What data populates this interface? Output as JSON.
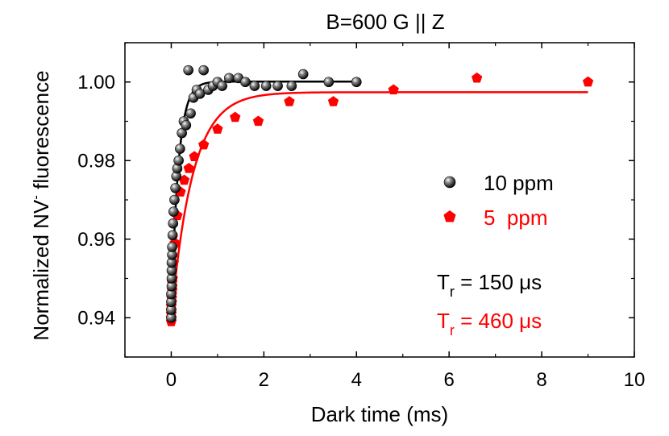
{
  "chart_data": {
    "type": "scatter",
    "title": "B=600 G || Z",
    "xlabel": "Dark time (ms)",
    "ylabel_main": "Normalized NV",
    "ylabel_sup": "-",
    "ylabel_tail": " fluorescence",
    "xlim": [
      -1,
      10
    ],
    "ylim": [
      0.93,
      1.01
    ],
    "xticks": [
      0,
      2,
      4,
      6,
      8,
      10
    ],
    "xtick_labels": [
      "0",
      "2",
      "4",
      "6",
      "8",
      "10"
    ],
    "yticks": [
      0.94,
      0.96,
      0.98,
      1.0
    ],
    "ytick_labels": [
      "0.94",
      "0.96",
      "0.98",
      "1.00"
    ],
    "grid": false,
    "legend_position": "right",
    "series": [
      {
        "name": "10 ppm",
        "color": "#000000",
        "marker": "sphere",
        "points": [
          [
            0.0,
            0.94
          ],
          [
            0.0,
            0.942
          ],
          [
            0.0,
            0.944
          ],
          [
            0.0,
            0.946
          ],
          [
            0.01,
            0.948
          ],
          [
            0.01,
            0.95
          ],
          [
            0.01,
            0.952
          ],
          [
            0.01,
            0.954
          ],
          [
            0.02,
            0.956
          ],
          [
            0.02,
            0.958
          ],
          [
            0.03,
            0.961
          ],
          [
            0.04,
            0.964
          ],
          [
            0.05,
            0.967
          ],
          [
            0.07,
            0.97
          ],
          [
            0.09,
            0.973
          ],
          [
            0.11,
            0.976
          ],
          [
            0.13,
            0.978
          ],
          [
            0.16,
            0.98
          ],
          [
            0.19,
            0.983
          ],
          [
            0.23,
            0.987
          ],
          [
            0.27,
            0.99
          ],
          [
            0.32,
            0.989
          ],
          [
            0.37,
            1.003
          ],
          [
            0.42,
            0.992
          ],
          [
            0.48,
            0.996
          ],
          [
            0.55,
            0.998
          ],
          [
            0.62,
            0.997
          ],
          [
            0.7,
            1.003
          ],
          [
            0.8,
            0.998
          ],
          [
            0.9,
            0.999
          ],
          [
            1.0,
            1.0
          ],
          [
            1.1,
            0.999
          ],
          [
            1.25,
            1.001
          ],
          [
            1.45,
            1.001
          ],
          [
            1.6,
            1.0
          ],
          [
            1.8,
            0.999
          ],
          [
            2.05,
            0.999
          ],
          [
            2.3,
            0.999
          ],
          [
            2.6,
            0.999
          ],
          [
            2.85,
            1.002
          ],
          [
            3.4,
            1.0
          ],
          [
            4.0,
            1.0
          ]
        ],
        "fit": {
          "y0": 0.9398,
          "amplitude": 0.0603,
          "tau": 0.15,
          "x_end": 4.0
        }
      },
      {
        "name": "5  ppm",
        "color": "#ff0000",
        "marker": "pentagon",
        "points": [
          [
            0.0,
            0.939
          ],
          [
            0.0,
            0.94
          ],
          [
            0.0,
            0.941
          ],
          [
            0.0,
            0.942
          ],
          [
            0.0,
            0.943
          ],
          [
            0.01,
            0.944
          ],
          [
            0.01,
            0.945
          ],
          [
            0.01,
            0.946
          ],
          [
            0.02,
            0.947
          ],
          [
            0.02,
            0.948
          ],
          [
            0.02,
            0.949
          ],
          [
            0.03,
            0.95
          ],
          [
            0.05,
            0.954
          ],
          [
            0.08,
            0.959
          ],
          [
            0.13,
            0.966
          ],
          [
            0.2,
            0.972
          ],
          [
            0.28,
            0.975
          ],
          [
            0.38,
            0.978
          ],
          [
            0.5,
            0.981
          ],
          [
            0.7,
            0.984
          ],
          [
            1.0,
            0.988
          ],
          [
            1.38,
            0.991
          ],
          [
            1.88,
            0.99
          ],
          [
            2.55,
            0.995
          ],
          [
            3.5,
            0.995
          ],
          [
            4.8,
            0.998
          ],
          [
            6.6,
            1.001
          ],
          [
            9.0,
            1.0
          ]
        ],
        "fit": {
          "y0": 0.9398,
          "amplitude": 0.0576,
          "tau": 0.46,
          "x_end": 9.0
        }
      }
    ],
    "annotations": [
      {
        "main": "T",
        "sub": "r",
        "rest": " = 150 μs",
        "color": "#000000"
      },
      {
        "main": "T",
        "sub": "r",
        "rest": " = 460 μs",
        "color": "#ff0000"
      }
    ]
  }
}
